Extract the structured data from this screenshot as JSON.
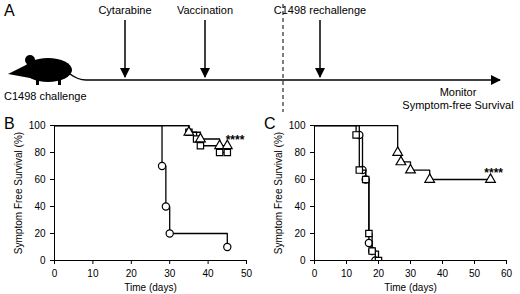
{
  "diagram": {
    "panel": "A",
    "start_label": "C1498 challenge",
    "events": [
      {
        "label": "Cytarabine"
      },
      {
        "label": "Vaccination"
      },
      {
        "label": "C1498 rechallenge"
      }
    ],
    "end_label": [
      "Monitor",
      "Symptom-free Survival"
    ]
  },
  "chart_data": [
    {
      "type": "line",
      "title": "B",
      "xlabel": "Time (days)",
      "ylabel": "Symptom Free Survival (%)",
      "xlim": [
        0,
        50
      ],
      "xticks": [
        0,
        10,
        20,
        30,
        40,
        50
      ],
      "ylim": [
        0,
        100
      ],
      "yticks": [
        0,
        20,
        40,
        60,
        80,
        100
      ],
      "grid": false,
      "series": [
        {
          "color": "#000000",
          "marker": "circle",
          "line_style": "solid",
          "x": [
            0,
            28,
            29,
            30,
            45
          ],
          "values": [
            100,
            70,
            40,
            20,
            10
          ]
        },
        {
          "color": "#000000",
          "marker": "square",
          "line_style": "solid",
          "x": [
            0,
            35,
            37,
            38,
            43,
            45
          ],
          "values": [
            100,
            95,
            90,
            85,
            80,
            80
          ]
        },
        {
          "color": "#000000",
          "marker": "triangle",
          "line_style": "solid",
          "x": [
            0,
            35,
            38,
            43,
            45
          ],
          "values": [
            100,
            95,
            90,
            85,
            85
          ]
        }
      ],
      "annotations": [
        {
          "text": "****",
          "x": 47,
          "y": 89
        }
      ]
    },
    {
      "type": "line",
      "title": "C",
      "xlabel": "Time (days)",
      "ylabel": "Symptom Free Survival (%)",
      "xlim": [
        0,
        60
      ],
      "xticks": [
        0,
        10,
        20,
        30,
        40,
        50,
        60
      ],
      "ylim": [
        0,
        100
      ],
      "yticks": [
        0,
        20,
        40,
        60,
        80,
        100
      ],
      "grid": false,
      "series": [
        {
          "color": "#000000",
          "marker": "circle",
          "line_style": "solid",
          "x": [
            0,
            14,
            15,
            16,
            17,
            18,
            19
          ],
          "values": [
            100,
            93,
            67,
            60,
            13,
            7,
            0
          ]
        },
        {
          "color": "#000000",
          "marker": "square",
          "line_style": "solid",
          "x": [
            0,
            13,
            14,
            16,
            17,
            18,
            20
          ],
          "values": [
            100,
            93,
            67,
            60,
            20,
            7,
            0
          ]
        },
        {
          "color": "#000000",
          "marker": "triangle",
          "line_style": "solid",
          "x": [
            0,
            26,
            27,
            30,
            36,
            55
          ],
          "values": [
            100,
            80,
            73,
            67,
            60,
            60
          ]
        }
      ],
      "annotations": [
        {
          "text": "****",
          "x": 56,
          "y": 65
        }
      ]
    }
  ]
}
